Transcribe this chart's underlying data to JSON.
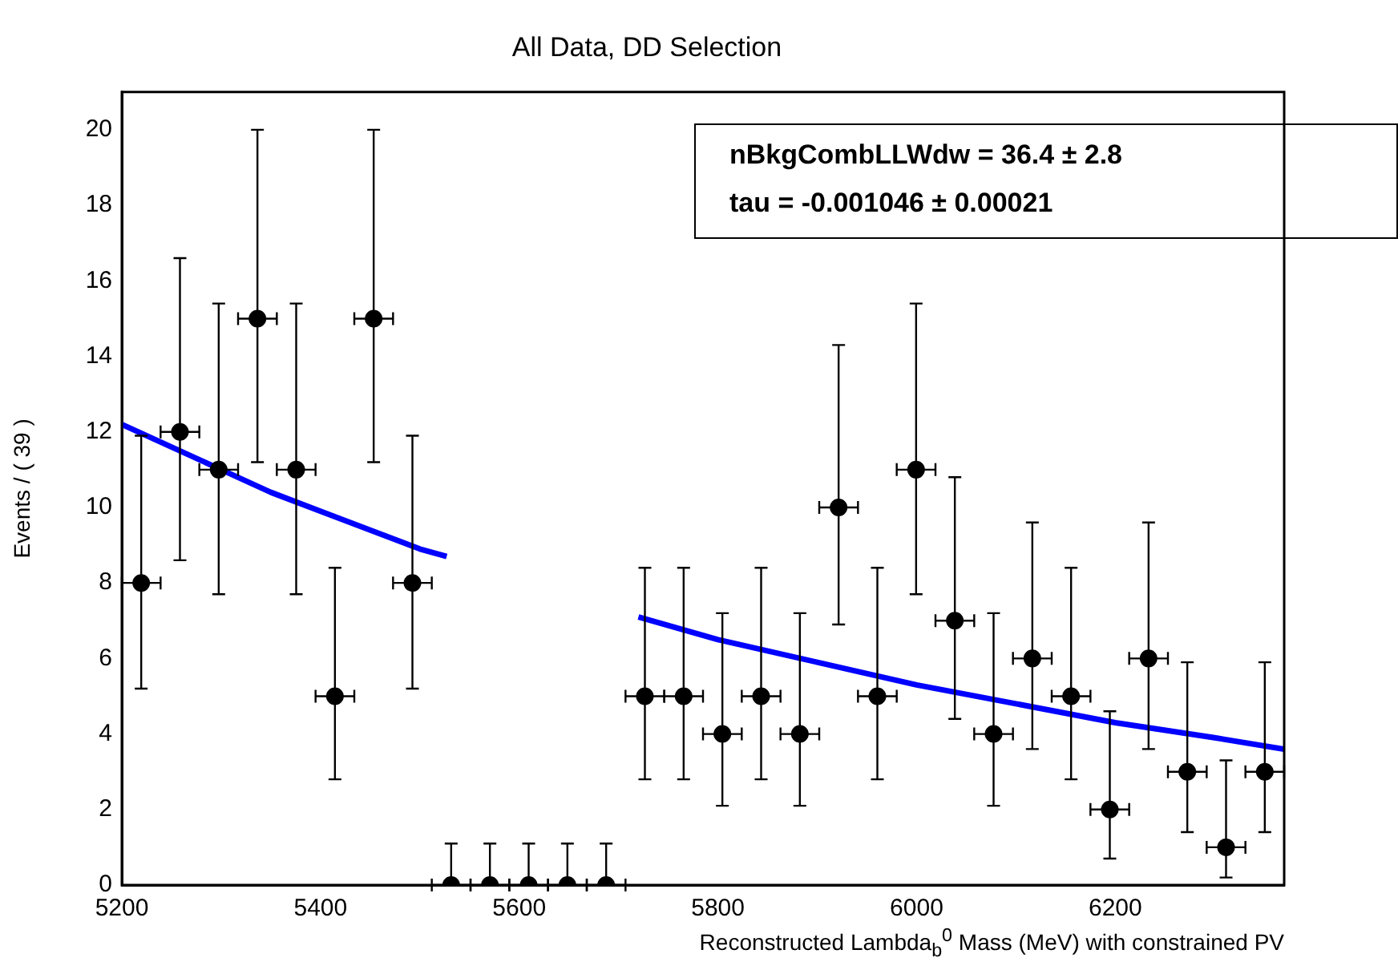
{
  "chart_data": {
    "type": "scatter",
    "title": "All Data, DD Selection",
    "xlabel": "Reconstructed Lambda$_{b}$$^{0}$ Mass (MeV) with constrained PV",
    "ylabel": "Events / ( 39 )",
    "xlim": [
      5200,
      6370
    ],
    "xticks": [
      5200,
      5400,
      5600,
      5800,
      6000,
      6200
    ],
    "ylim": [
      0,
      21
    ],
    "yticks": [
      0,
      2,
      4,
      6,
      8,
      10,
      12,
      14,
      16,
      18,
      20
    ],
    "grid": false,
    "legend": false,
    "annotations": [
      "nBkgCombLLWdw =  36.4 ± 2.8",
      "tau = -0.001046 ± 0.00021"
    ],
    "series": [
      {
        "color": "#000000",
        "marker": "circle",
        "x": [
          5219.5,
          5258.5,
          5297.5,
          5336.5,
          5375.5,
          5414.5,
          5453.5,
          5492.5,
          5531.5,
          5570.5,
          5609.5,
          5648.5,
          5687.5,
          5726.5,
          5765.5,
          5804.5,
          5843.5,
          5882.5,
          5921.5,
          5960.5,
          5999.5,
          6038.5,
          6077.5,
          6116.5,
          6155.5,
          6194.5,
          6233.5,
          6272.5,
          6311.5,
          6350.5
        ],
        "values": [
          8,
          12,
          11,
          15,
          11,
          5,
          15,
          8,
          0,
          0,
          0,
          0,
          0,
          5,
          5,
          4,
          5,
          4,
          10,
          5,
          11,
          7,
          4,
          6,
          5,
          2,
          6,
          3,
          1,
          3
        ],
        "errors": [
          [
            5.2,
            11.9
          ],
          [
            8.6,
            16.6
          ],
          [
            7.7,
            15.4
          ],
          [
            11.2,
            20.0
          ],
          [
            7.7,
            15.4
          ],
          [
            2.8,
            8.4
          ],
          [
            11.2,
            20.0
          ],
          [
            5.2,
            11.9
          ],
          [
            0,
            1.1
          ],
          [
            0,
            1.1
          ],
          [
            0,
            1.1
          ],
          [
            0,
            1.1
          ],
          [
            0,
            1.1
          ],
          [
            2.8,
            8.4
          ],
          [
            2.8,
            8.4
          ],
          [
            2.1,
            7.2
          ],
          [
            2.8,
            8.4
          ],
          [
            2.1,
            7.2
          ],
          [
            6.9,
            14.3
          ],
          [
            2.8,
            8.4
          ],
          [
            7.7,
            15.4
          ],
          [
            4.4,
            10.8
          ],
          [
            2.1,
            7.2
          ],
          [
            3.6,
            9.6
          ],
          [
            2.8,
            8.4
          ],
          [
            0.7,
            4.6
          ],
          [
            3.6,
            9.6
          ],
          [
            1.4,
            5.9
          ],
          [
            0.2,
            3.3
          ],
          [
            1.4,
            5.9
          ]
        ],
        "xerrors": [
          19.5,
          19.5,
          19.5,
          19.5,
          19.5,
          19.5,
          19.5,
          19.5,
          19.5,
          19.5,
          19.5,
          19.5,
          19.5,
          19.5,
          19.5,
          19.5,
          19.5,
          19.5,
          19.5,
          19.5,
          19.5,
          19.5,
          19.5,
          19.5,
          19.5,
          19.5,
          19.5,
          19.5,
          19.5,
          19.5
        ]
      },
      {
        "type": "line",
        "color": "#0000ff",
        "x": [
          5200,
          5250,
          5300,
          5350,
          5400,
          5450,
          5500,
          5527
        ],
        "values": [
          12.2,
          11.6,
          11.0,
          10.4,
          9.9,
          9.4,
          8.9,
          8.7
        ]
      },
      {
        "type": "line",
        "color": "#0000ff",
        "x": [
          5720,
          5800,
          5900,
          6000,
          6100,
          6200,
          6300,
          6370
        ],
        "values": [
          7.1,
          6.5,
          5.9,
          5.3,
          4.8,
          4.3,
          3.9,
          3.6
        ]
      }
    ]
  }
}
